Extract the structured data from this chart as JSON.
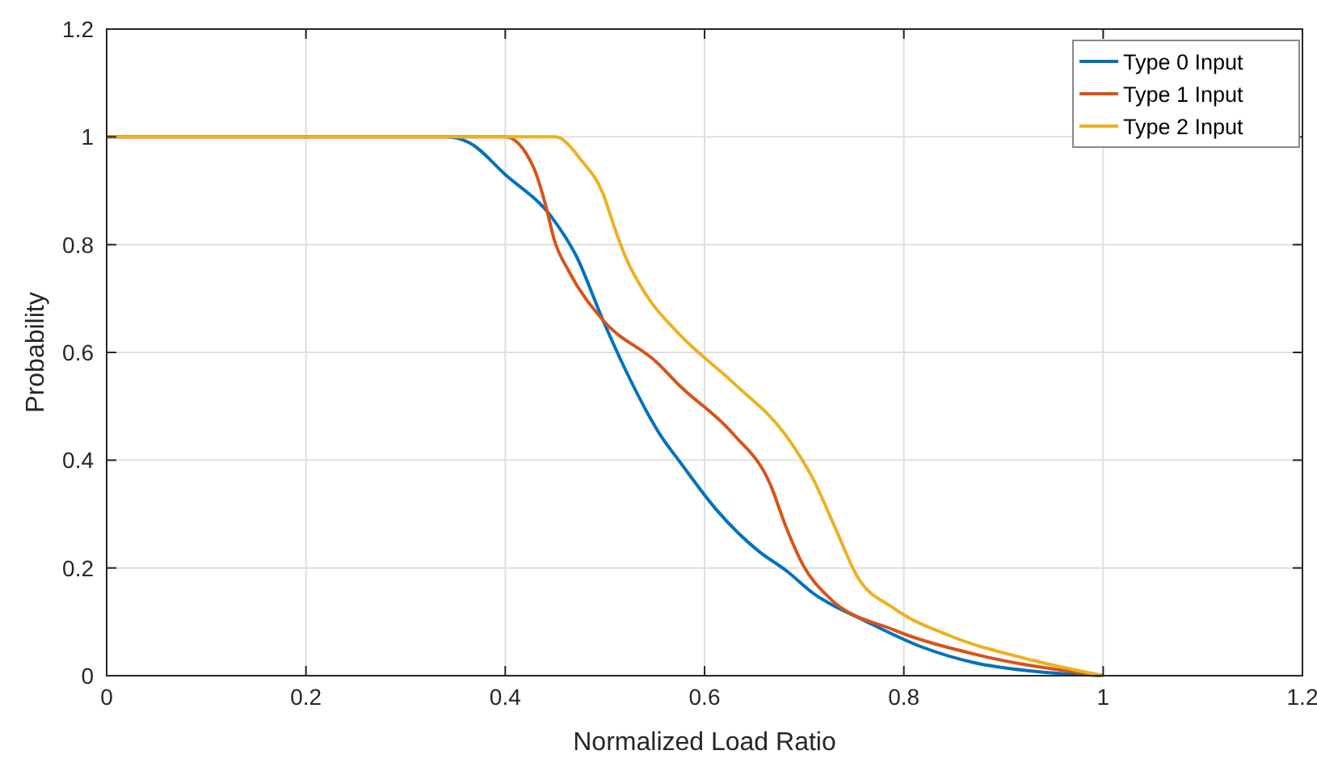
{
  "chart_data": {
    "type": "line",
    "xlabel": "Normalized Load Ratio",
    "ylabel": "Probability",
    "xlim": [
      0,
      1.2
    ],
    "ylim": [
      0,
      1.2
    ],
    "xticks": [
      0,
      0.2,
      0.4,
      0.6,
      0.8,
      1,
      1.2
    ],
    "yticks": [
      0,
      0.2,
      0.4,
      0.6,
      0.8,
      1,
      1.2
    ],
    "grid": true,
    "legend": "top right",
    "line_style": "solid",
    "series": [
      {
        "name": "Type 0 Input",
        "color": "#0072bd",
        "x": [
          0,
          0.34,
          0.363,
          0.4,
          0.447,
          0.471,
          0.498,
          0.52,
          0.558,
          0.574,
          0.611,
          0.655,
          0.682,
          0.709,
          0.763,
          0.817,
          0.871,
          0.926,
          1
        ],
        "values": [
          1,
          1,
          0.99,
          0.93,
          0.85,
          0.78,
          0.66,
          0.57,
          0.44,
          0.4,
          0.31,
          0.23,
          0.195,
          0.153,
          0.1,
          0.054,
          0.024,
          0.009,
          0
        ]
      },
      {
        "name": "Type 1 Input",
        "color": "#d95319",
        "x": [
          0,
          0.4,
          0.428,
          0.441,
          0.449,
          0.464,
          0.498,
          0.553,
          0.574,
          0.628,
          0.666,
          0.682,
          0.699,
          0.725,
          0.79,
          0.871,
          1
        ],
        "values": [
          1,
          1,
          0.945,
          0.87,
          0.81,
          0.75,
          0.66,
          0.58,
          0.54,
          0.45,
          0.355,
          0.275,
          0.205,
          0.145,
          0.085,
          0.04,
          0
        ]
      },
      {
        "name": "Type 2 Input",
        "color": "#edb120",
        "x": [
          0,
          0.45,
          0.477,
          0.498,
          0.509,
          0.52,
          0.542,
          0.574,
          0.628,
          0.682,
          0.709,
          0.731,
          0.753,
          0.79,
          0.845,
          0.926,
          1
        ],
        "values": [
          1,
          1,
          0.955,
          0.895,
          0.835,
          0.78,
          0.705,
          0.635,
          0.545,
          0.445,
          0.365,
          0.275,
          0.185,
          0.125,
          0.075,
          0.03,
          0
        ]
      }
    ]
  }
}
